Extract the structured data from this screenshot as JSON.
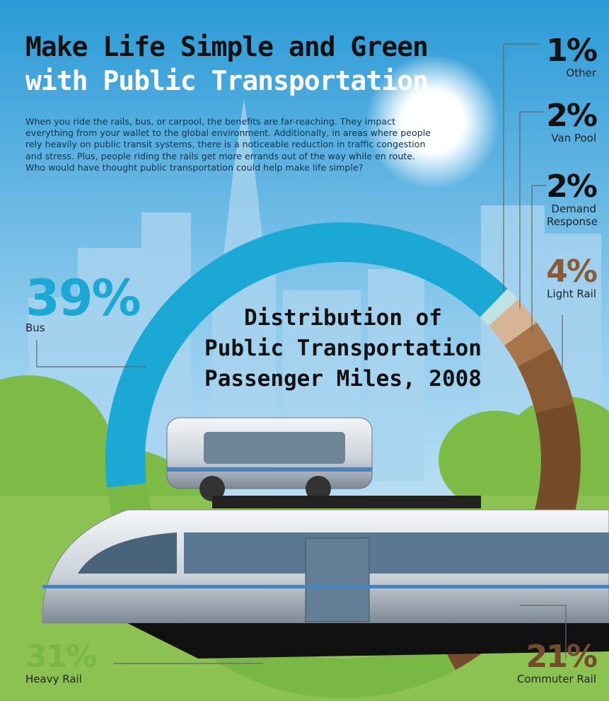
{
  "chart_data": {
    "type": "donut",
    "title": [
      "Make Life Simple and Green",
      "with Public Transportation"
    ],
    "intro": [
      "When you ride the rails, bus, or carpool, the benefits are far-reaching. They impact",
      "everything from your wallet to the global environment. Additionally, in areas where people",
      "rely heavily on public transit systems, there is a noticeable reduction in traffic congestion",
      "and stress. Plus, people riding the rails get more errands out of the way while en route.",
      "Who would have thought public transportation could help make life simple?"
    ],
    "center_title": [
      "Distribution of",
      "Public Transportation",
      "Passenger Miles, 2008"
    ],
    "categories": [
      "Other",
      "Van Pool",
      "Demand Response",
      "Light Rail",
      "Commuter Rail",
      "Heavy Rail",
      "Bus"
    ],
    "values": [
      1,
      2,
      2,
      4,
      21,
      31,
      39
    ],
    "value_labels": [
      "1%",
      "2%",
      "2%",
      "4%",
      "21%",
      "31%",
      "39%"
    ],
    "colors": [
      "#bfe3e3",
      "#d6b495",
      "#a8744a",
      "#8a5a34",
      "#744b2b",
      "#7ab845",
      "#1ba8d5"
    ]
  }
}
